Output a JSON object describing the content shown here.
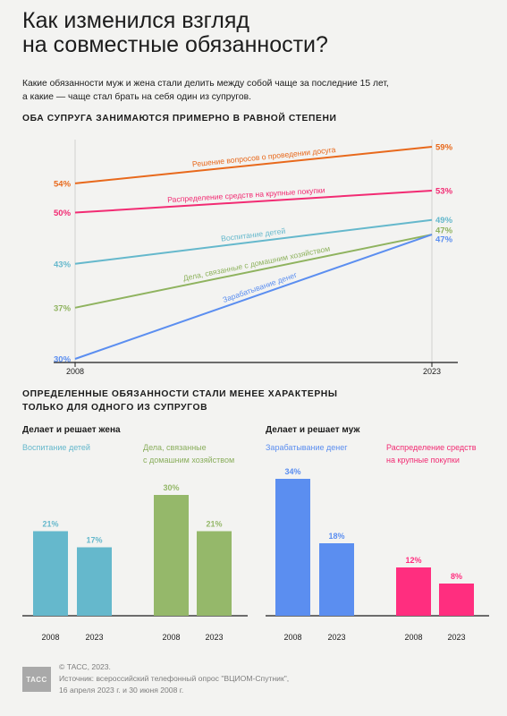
{
  "header": {
    "title_line1": "Как изменился взгляд",
    "title_line2": "на совместные обязанности?",
    "intro_line1": "Какие обязанности муж и жена стали делить между собой чаще за последние 15 лет,",
    "intro_line2": "а какие — чаще стал брать на себя один из супругов."
  },
  "section1": {
    "heading": "ОБА СУПРУГА ЗАНИМАЮТСЯ ПРИМЕРНО В РАВНОЙ СТЕПЕНИ"
  },
  "section2": {
    "heading_line1": "ОПРЕДЕЛЕННЫЕ ОБЯЗАННОСТИ СТАЛИ МЕНЕЕ ХАРАКТЕРНЫ",
    "heading_line2": "ТОЛЬКО ДЛЯ ОДНОГО ИЗ СУПРУГОВ",
    "wife_heading": "Делает и решает жена",
    "husband_heading": "Делает и решает муж"
  },
  "chart_data": [
    {
      "type": "line",
      "title": "ОБА СУПРУГА ЗАНИМАЮТСЯ ПРИМЕРНО В РАВНОЙ СТЕПЕНИ",
      "x": [
        "2008",
        "2023"
      ],
      "ylim": [
        30,
        62
      ],
      "series": [
        {
          "name": "Решение вопросов о проведении досуга",
          "values": [
            54,
            59
          ],
          "labels": [
            "54%",
            "59%"
          ],
          "color": "#e8691c"
        },
        {
          "name": "Распределение средств на крупные покупки",
          "values": [
            50,
            53
          ],
          "labels": [
            "50%",
            "53%"
          ],
          "color": "#f22b73"
        },
        {
          "name": "Воспитание детей",
          "values": [
            43,
            49
          ],
          "labels": [
            "43%",
            "49%"
          ],
          "color": "#65b8cc"
        },
        {
          "name": "Дела, связанные с домашним хозяйством",
          "values": [
            37,
            47
          ],
          "labels": [
            "37%",
            "47%"
          ],
          "color": "#8fb35f"
        },
        {
          "name": "Зарабатывание денег",
          "values": [
            30,
            47
          ],
          "labels": [
            "30%",
            "47%"
          ],
          "color": "#5b8ef0"
        }
      ]
    },
    {
      "type": "bar",
      "title": "Делает и решает жена",
      "categories": [
        "2008",
        "2023"
      ],
      "series": [
        {
          "name": "Воспитание детей",
          "values": [
            21,
            17
          ],
          "labels": [
            "21%",
            "17%"
          ],
          "color": "#65b8cc"
        },
        {
          "name": "Дела, связанные с домашним хозяйством",
          "values": [
            30,
            21
          ],
          "labels": [
            "30%",
            "21%"
          ],
          "color": "#95b86a"
        }
      ]
    },
    {
      "type": "bar",
      "title": "Делает и решает муж",
      "categories": [
        "2008",
        "2023"
      ],
      "series": [
        {
          "name": "Зарабатывание денег",
          "values": [
            34,
            18
          ],
          "labels": [
            "34%",
            "18%"
          ],
          "color": "#5b8ef0"
        },
        {
          "name": "Распределение средств на крупные покупки",
          "values": [
            12,
            8
          ],
          "labels": [
            "12%",
            "8%"
          ],
          "color": "#ff2e7f"
        }
      ]
    }
  ],
  "bar_categories": {
    "children_line1": "Воспитание детей",
    "house_line1": "Дела, связанные",
    "house_line2": "с домашним хозяйством",
    "money_line1": "Зарабатывание денег",
    "purchases_line1": "Распределение средств",
    "purchases_line2": "на крупные покупки"
  },
  "footer": {
    "logo": "ТАСС",
    "line1": "© ТАСС, 2023.",
    "line2": "Источник: всероссийский телефонный опрос \"ВЦИОМ-Спутник\",",
    "line3": "16 апреля 2023 г. и 30 июня 2008 г."
  }
}
